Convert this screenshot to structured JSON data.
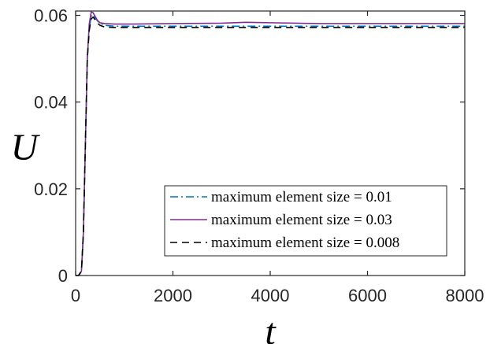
{
  "chart_data": {
    "type": "line",
    "xlabel": "t",
    "ylabel": "U",
    "xlim": [
      0,
      8000
    ],
    "ylim": [
      0,
      0.061
    ],
    "xticks": [
      0,
      2000,
      4000,
      6000,
      8000
    ],
    "xtick_labels": [
      "0",
      "2000",
      "4000",
      "6000",
      "8000"
    ],
    "yticks": [
      0,
      0.02,
      0.04,
      0.06
    ],
    "ytick_labels": [
      "0",
      "0.02",
      "0.04",
      "0.06"
    ],
    "grid": false,
    "legend_position": "lower-right",
    "series": [
      {
        "name": "maximum element size = 0.01",
        "color": "#0072BD",
        "dash": "dashdot",
        "x": [
          0,
          60,
          120,
          160,
          200,
          240,
          280,
          320,
          360,
          400,
          450,
          500,
          600,
          800,
          1200,
          2000,
          4000,
          6000,
          8000
        ],
        "y": [
          0,
          0,
          0.001,
          0.01,
          0.03,
          0.05,
          0.057,
          0.0598,
          0.0602,
          0.0595,
          0.0587,
          0.0582,
          0.0577,
          0.0575,
          0.0575,
          0.0575,
          0.0575,
          0.0575,
          0.0575
        ]
      },
      {
        "name": "maximum element size = 0.03",
        "color": "#7E2F8E",
        "dash": "solid",
        "x": [
          0,
          60,
          120,
          160,
          200,
          240,
          280,
          320,
          360,
          400,
          450,
          500,
          600,
          800,
          1200,
          2000,
          3000,
          3500,
          4000,
          5000,
          6000,
          8000
        ],
        "y": [
          0,
          0,
          0.001,
          0.01,
          0.03,
          0.05,
          0.058,
          0.0608,
          0.0606,
          0.0598,
          0.0588,
          0.0583,
          0.0581,
          0.058,
          0.058,
          0.0581,
          0.0582,
          0.0584,
          0.0583,
          0.0581,
          0.0581,
          0.0581
        ]
      },
      {
        "name": "maximum element size = 0.008",
        "color": "#000000",
        "dash": "dashed",
        "x": [
          0,
          60,
          120,
          160,
          200,
          240,
          280,
          320,
          360,
          400,
          450,
          500,
          600,
          800,
          1200,
          2000,
          4000,
          6000,
          8000
        ],
        "y": [
          0,
          0,
          0.001,
          0.01,
          0.03,
          0.05,
          0.0565,
          0.0592,
          0.0596,
          0.059,
          0.0582,
          0.0577,
          0.0573,
          0.0572,
          0.0572,
          0.0572,
          0.0572,
          0.0572,
          0.0572
        ]
      }
    ]
  }
}
